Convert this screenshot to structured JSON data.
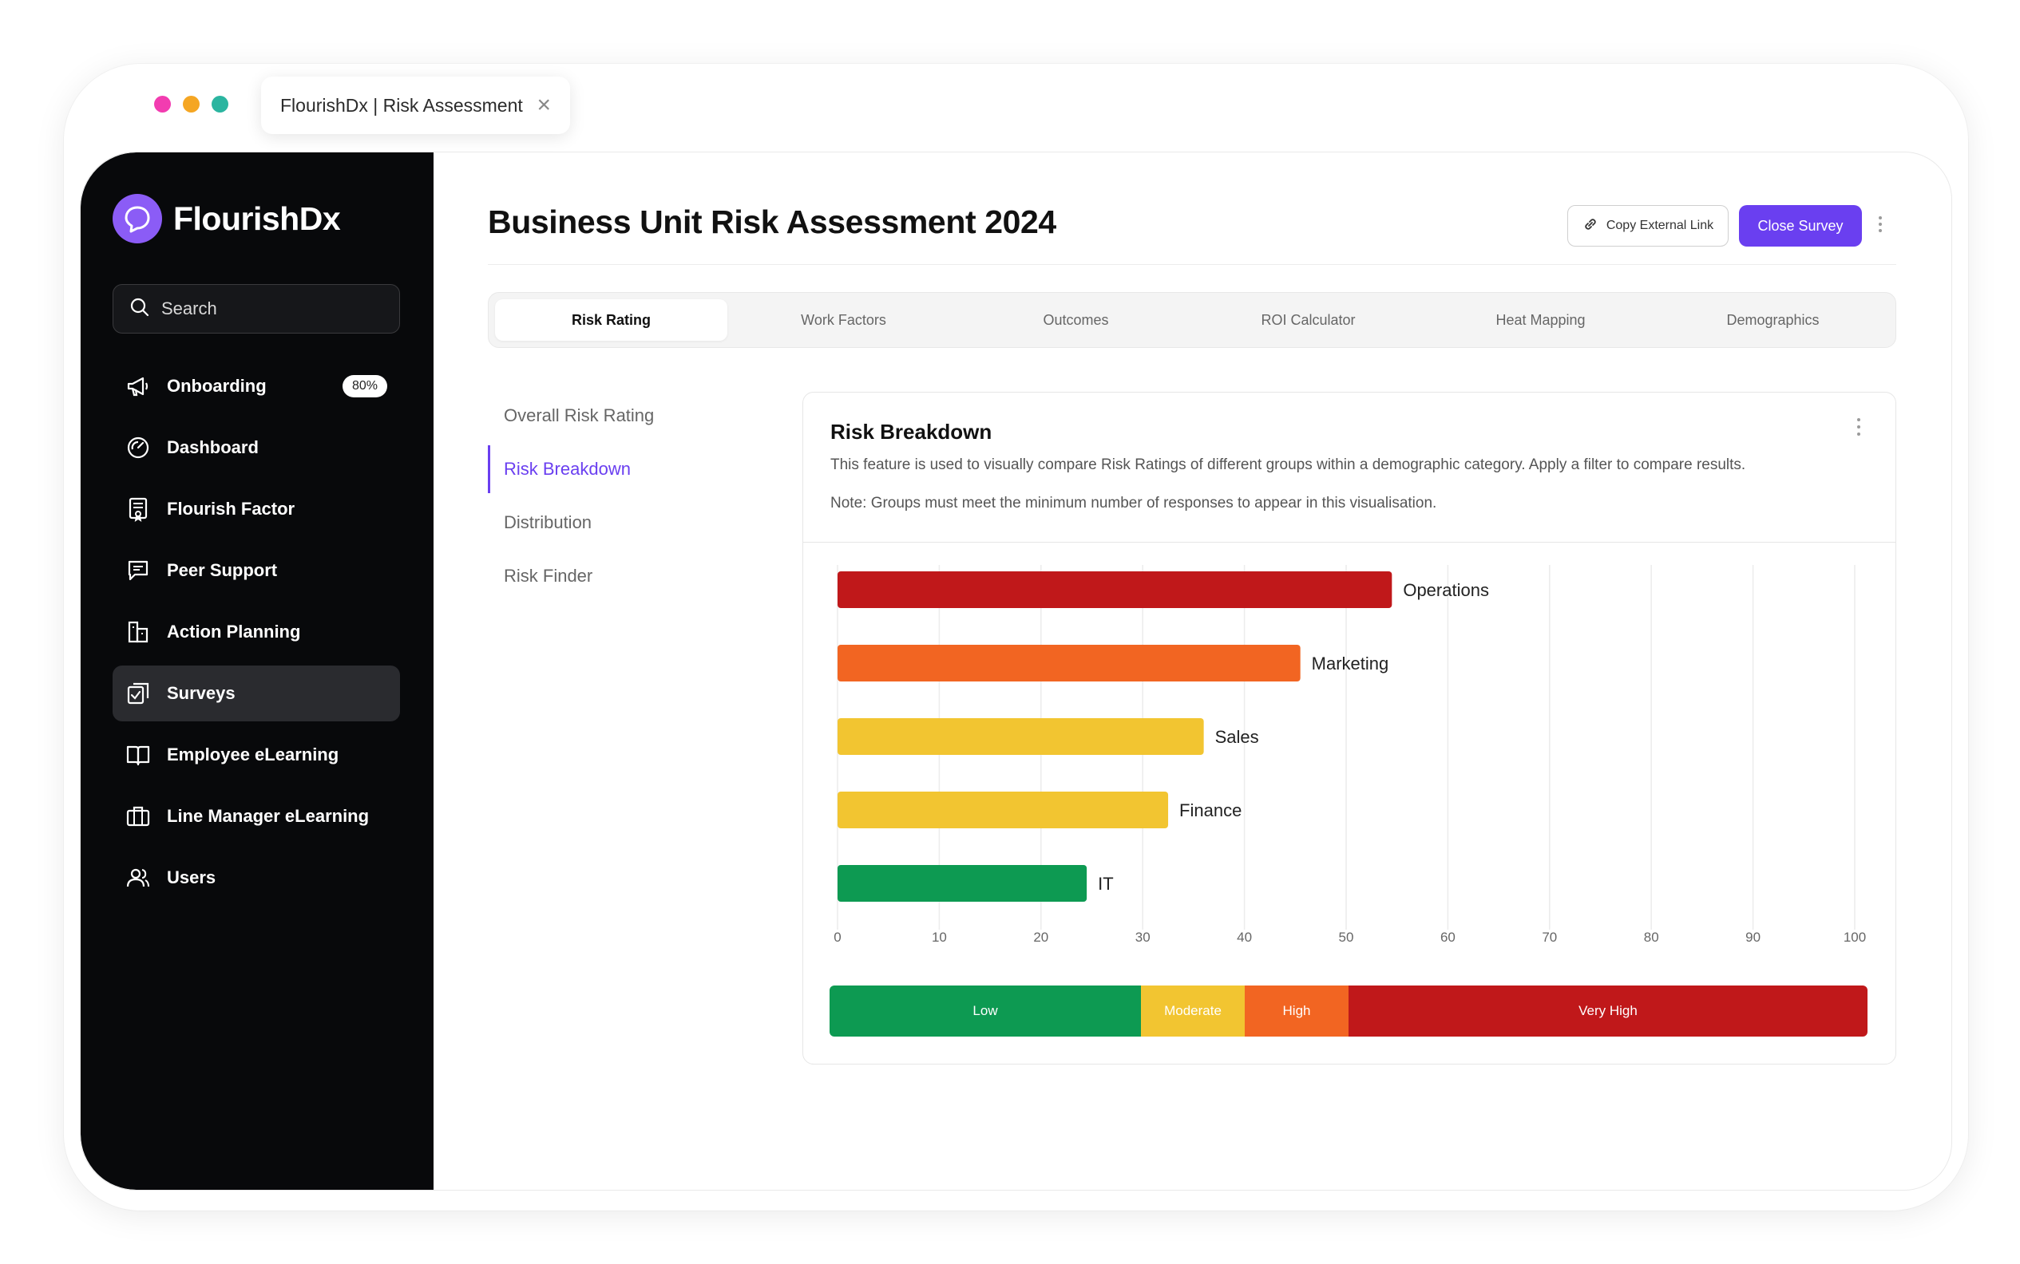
{
  "browser": {
    "tab_title": "FlourishDx | Risk Assessment",
    "dot_colors": [
      "#f23cb0",
      "#f5a623",
      "#2bb5a0"
    ]
  },
  "sidebar": {
    "brand": "FlourishDx",
    "search_placeholder": "Search",
    "items": [
      {
        "label": "Onboarding",
        "icon": "megaphone-icon",
        "badge": "80%"
      },
      {
        "label": "Dashboard",
        "icon": "gauge-icon"
      },
      {
        "label": "Flourish Factor",
        "icon": "certificate-icon"
      },
      {
        "label": "Peer Support",
        "icon": "chat-icon"
      },
      {
        "label": "Action Planning",
        "icon": "building-icon"
      },
      {
        "label": "Surveys",
        "icon": "survey-check-icon",
        "active": true
      },
      {
        "label": "Employee eLearning",
        "icon": "book-icon"
      },
      {
        "label": "Line Manager eLearning",
        "icon": "briefcase-icon"
      },
      {
        "label": "Users",
        "icon": "users-icon"
      }
    ]
  },
  "header": {
    "title": "Business Unit Risk Assessment 2024",
    "copy_link_label": "Copy External Link",
    "close_survey_label": "Close Survey"
  },
  "tabs": [
    {
      "label": "Risk Rating",
      "active": true
    },
    {
      "label": "Work Factors"
    },
    {
      "label": "Outcomes"
    },
    {
      "label": "ROI Calculator"
    },
    {
      "label": "Heat Mapping"
    },
    {
      "label": "Demographics"
    }
  ],
  "subnav": [
    {
      "label": "Overall Risk Rating"
    },
    {
      "label": "Risk Breakdown",
      "active": true
    },
    {
      "label": "Distribution"
    },
    {
      "label": "Risk Finder"
    }
  ],
  "card": {
    "title": "Risk Breakdown",
    "description": "This feature is used to visually compare Risk Ratings of different groups within a demographic category. Apply a filter to compare results.",
    "note": "Note: Groups must meet the minimum number of responses to appear in this visualisation."
  },
  "chart_data": {
    "type": "bar",
    "orientation": "horizontal",
    "categories": [
      "Operations",
      "Marketing",
      "Sales",
      "Finance",
      "IT"
    ],
    "values": [
      54.5,
      45.5,
      36,
      32.5,
      24.5
    ],
    "colors": [
      "#c0181a",
      "#f26522",
      "#f2c531",
      "#f2c531",
      "#0d9a52"
    ],
    "xlim": [
      0,
      100
    ],
    "xticks": [
      0,
      10,
      20,
      30,
      40,
      50,
      60,
      70,
      80,
      90,
      100
    ],
    "grid": true,
    "bands": [
      {
        "label": "Low",
        "from": 0,
        "to": 30,
        "color": "#0d9a52"
      },
      {
        "label": "Moderate",
        "from": 30,
        "to": 40,
        "color": "#f2c531"
      },
      {
        "label": "High",
        "from": 40,
        "to": 50,
        "color": "#f26522"
      },
      {
        "label": "Very High",
        "from": 50,
        "to": 100,
        "color": "#c0181a"
      }
    ]
  }
}
